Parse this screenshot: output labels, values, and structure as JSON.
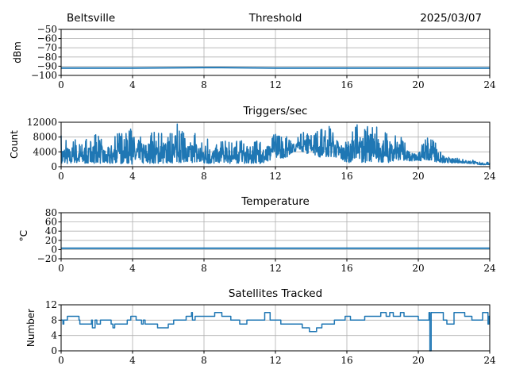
{
  "header": {
    "site": "Beltsville",
    "date": "2025/03/07"
  },
  "colors": {
    "line": "#1f77b4",
    "grid": "#b0b0b0",
    "axis": "#000000"
  },
  "chart_data": [
    {
      "type": "line",
      "title": "Threshold",
      "ylabel": "dBm",
      "xlim": [
        0,
        24
      ],
      "ylim": [
        -100,
        -50
      ],
      "xticks": [
        0,
        4,
        8,
        12,
        16,
        20,
        24
      ],
      "yticks": [
        -100,
        -90,
        -80,
        -70,
        -60,
        -50
      ],
      "ytick_labels": [
        "−100",
        "−90",
        "−80",
        "−70",
        "−60",
        "−50"
      ],
      "grid": true,
      "x": [
        0,
        4,
        8,
        9,
        12,
        16,
        20,
        24
      ],
      "y": [
        -92,
        -92,
        -91.5,
        -91.5,
        -92,
        -92,
        -92,
        -92
      ]
    },
    {
      "type": "line",
      "title": "Triggers/sec",
      "ylabel": "Count",
      "xlim": [
        0,
        24
      ],
      "ylim": [
        0,
        12000
      ],
      "xticks": [
        0,
        4,
        8,
        12,
        16,
        20,
        24
      ],
      "yticks": [
        0,
        4000,
        8000,
        12000
      ],
      "ytick_labels": [
        "0",
        "4000",
        "8000",
        "12000"
      ],
      "grid": true,
      "x_step_hours": 0.5,
      "upper": [
        8500,
        6500,
        9000,
        7000,
        9000,
        6000,
        9000,
        9500,
        11500,
        8500,
        9500,
        9500,
        9000,
        12000,
        8000,
        9500,
        9000,
        6500,
        7000,
        7000,
        7000,
        7000,
        7000,
        7000,
        9000,
        8500,
        7000,
        9500,
        9000,
        10000,
        11000,
        9000,
        6500,
        11500,
        10500,
        12000,
        10500,
        8500,
        8500,
        5000,
        4500,
        8000,
        7000,
        3000,
        2500,
        2000,
        2000,
        1200,
        1200
      ],
      "lower": [
        500,
        800,
        800,
        800,
        700,
        800,
        600,
        800,
        500,
        800,
        700,
        800,
        800,
        900,
        800,
        800,
        800,
        800,
        800,
        800,
        800,
        800,
        800,
        800,
        2500,
        2000,
        4000,
        4000,
        3000,
        2500,
        2500,
        2500,
        1000,
        1000,
        1000,
        1000,
        1000,
        1000,
        1500,
        1500,
        1500,
        1500,
        1200,
        1000,
        1000,
        1000,
        800,
        500,
        500
      ]
    },
    {
      "type": "line",
      "title": "Temperature",
      "ylabel": "°C",
      "xlim": [
        0,
        24
      ],
      "ylim": [
        -20,
        80
      ],
      "xticks": [
        0,
        4,
        8,
        12,
        16,
        20,
        24
      ],
      "yticks": [
        -20,
        0,
        20,
        40,
        60,
        80
      ],
      "ytick_labels": [
        "−20",
        "0",
        "20",
        "40",
        "60",
        "80"
      ],
      "grid": true,
      "x": [
        0,
        24
      ],
      "y": [
        3,
        3
      ]
    },
    {
      "type": "line",
      "title": "Satellites Tracked",
      "ylabel": "Number",
      "xlim": [
        0,
        24
      ],
      "ylim": [
        0,
        12
      ],
      "xticks": [
        0,
        4,
        8,
        12,
        16,
        20,
        24
      ],
      "yticks": [
        0,
        4,
        8,
        12
      ],
      "ytick_labels": [
        "0",
        "4",
        "8",
        "12"
      ],
      "grid": true,
      "step": true,
      "x": [
        0,
        0.1,
        0.15,
        0.35,
        1.0,
        1.05,
        1.2,
        1.7,
        1.75,
        1.9,
        2.0,
        2.2,
        2.8,
        2.9,
        3.0,
        3.7,
        3.9,
        4.2,
        4.5,
        4.6,
        4.7,
        5.4,
        6.0,
        6.3,
        7.0,
        7.3,
        7.35,
        7.5,
        8.0,
        8.6,
        9.0,
        9.5,
        10.0,
        10.4,
        11.4,
        11.7,
        12.3,
        13.0,
        13.5,
        13.9,
        14.0,
        14.3,
        14.6,
        15.3,
        15.9,
        16.2,
        17.0,
        17.9,
        18.2,
        18.4,
        18.6,
        19.0,
        19.2,
        20.0,
        20.6,
        20.65,
        20.72,
        21.0,
        21.4,
        21.6,
        22.0,
        22.6,
        23.0,
        23.6,
        23.9,
        23.95
      ],
      "y": [
        8,
        7,
        8,
        9,
        8,
        7,
        7,
        8,
        6,
        8,
        7,
        8,
        7,
        6,
        7,
        8,
        9,
        8,
        7,
        8,
        7,
        6,
        7,
        8,
        9,
        10,
        8,
        9,
        9,
        10,
        9,
        8,
        7,
        8,
        10,
        8,
        7,
        7,
        6,
        5,
        5,
        6,
        7,
        8,
        9,
        8,
        9,
        10,
        9,
        10,
        9,
        10,
        9,
        8,
        10,
        0,
        10,
        10,
        8,
        7,
        10,
        9,
        8,
        10,
        7,
        9
      ]
    }
  ]
}
